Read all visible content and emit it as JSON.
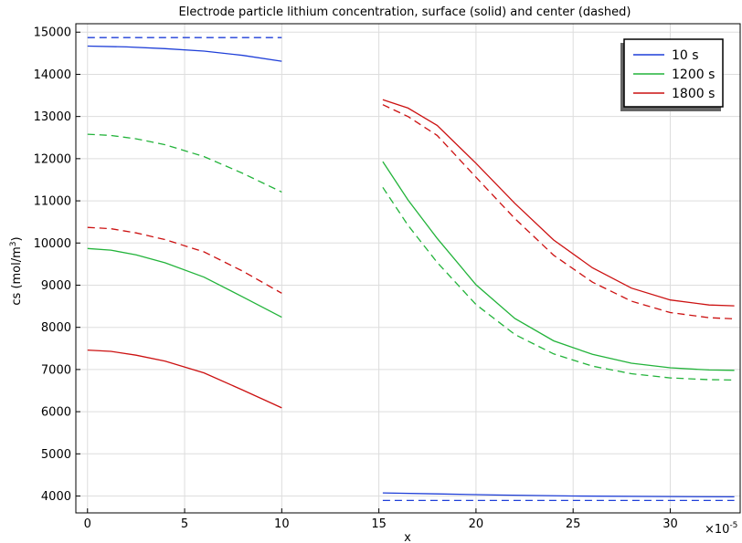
{
  "chart_data": {
    "type": "line",
    "title": "Electrode particle lithium concentration, surface (solid) and center (dashed)",
    "xlabel": "x",
    "ylabel": "cs (mol/m",
    "ylabel_sup": "3",
    "ylabel_close": ")",
    "x_multiplier": "×10",
    "x_multiplier_exp": "-5",
    "xlim": [
      -0.6,
      33.6
    ],
    "ylim": [
      3600,
      15200
    ],
    "xticks": [
      0,
      5,
      10,
      15,
      20,
      25,
      30
    ],
    "xtick_labels": [
      "0",
      "5",
      "10",
      "15",
      "20",
      "25",
      "30"
    ],
    "yticks": [
      4000,
      5000,
      6000,
      7000,
      8000,
      9000,
      10000,
      11000,
      12000,
      13000,
      14000,
      15000
    ],
    "ytick_labels": [
      "4000",
      "5000",
      "6000",
      "7000",
      "8000",
      "9000",
      "10000",
      "11000",
      "12000",
      "13000",
      "14000",
      "15000"
    ],
    "grid": true,
    "legend_position": "top-right",
    "legend": [
      {
        "label": "10 s",
        "color": "#1f3fd8"
      },
      {
        "label": "1200 s",
        "color": "#22b33a"
      },
      {
        "label": "1800 s",
        "color": "#cc1111"
      }
    ],
    "series": [
      {
        "name": "10 s",
        "style": "solid",
        "color": "#1f3fd8",
        "x": [
          0,
          2,
          4,
          6,
          8,
          10
        ],
        "y": [
          14670,
          14650,
          14610,
          14550,
          14450,
          14310
        ]
      },
      {
        "name": "10 s",
        "style": "dashed",
        "color": "#1f3fd8",
        "x": [
          0,
          10
        ],
        "y": [
          14870,
          14870
        ]
      },
      {
        "name": "1200 s",
        "style": "solid",
        "color": "#22b33a",
        "x": [
          0,
          1.2,
          2.5,
          4,
          6,
          8,
          10
        ],
        "y": [
          9870,
          9830,
          9720,
          9530,
          9190,
          8720,
          8240
        ]
      },
      {
        "name": "1200 s",
        "style": "dashed",
        "color": "#22b33a",
        "x": [
          0,
          1.2,
          2.5,
          4,
          6,
          8,
          10
        ],
        "y": [
          12580,
          12550,
          12470,
          12330,
          12050,
          11650,
          11210
        ]
      },
      {
        "name": "1800 s",
        "style": "solid",
        "color": "#cc1111",
        "x": [
          0,
          1.2,
          2.5,
          4,
          6,
          8,
          10
        ],
        "y": [
          7460,
          7430,
          7340,
          7200,
          6920,
          6510,
          6090
        ]
      },
      {
        "name": "1800 s",
        "style": "dashed",
        "color": "#cc1111",
        "x": [
          0,
          1.2,
          2.5,
          4,
          6,
          8,
          10
        ],
        "y": [
          10370,
          10340,
          10240,
          10080,
          9790,
          9330,
          8810
        ]
      },
      {
        "name": "10 s",
        "style": "solid",
        "color": "#1f3fd8",
        "x": [
          15.2,
          18,
          21,
          25,
          29,
          33.3
        ],
        "y": [
          4075,
          4050,
          4025,
          4000,
          3990,
          3980
        ]
      },
      {
        "name": "10 s",
        "style": "dashed",
        "color": "#1f3fd8",
        "x": [
          15.2,
          33.3
        ],
        "y": [
          3895,
          3895
        ]
      },
      {
        "name": "1200 s",
        "style": "solid",
        "color": "#22b33a",
        "x": [
          15.2,
          16.5,
          18,
          20,
          22,
          24,
          26,
          28,
          30,
          32,
          33.3
        ],
        "y": [
          11930,
          11020,
          10110,
          9010,
          8210,
          7680,
          7360,
          7150,
          7040,
          6990,
          6980
        ]
      },
      {
        "name": "1200 s",
        "style": "dashed",
        "color": "#22b33a",
        "x": [
          15.2,
          16.5,
          18,
          20,
          22,
          24,
          26,
          28,
          30,
          32,
          33.3
        ],
        "y": [
          11320,
          10420,
          9540,
          8540,
          7830,
          7370,
          7080,
          6900,
          6800,
          6760,
          6750
        ]
      },
      {
        "name": "1800 s",
        "style": "solid",
        "color": "#cc1111",
        "x": [
          15.2,
          16.5,
          18,
          20,
          22,
          24,
          26,
          28,
          30,
          32,
          33.3
        ],
        "y": [
          13400,
          13200,
          12790,
          11890,
          10940,
          10070,
          9410,
          8930,
          8650,
          8530,
          8510
        ]
      },
      {
        "name": "1800 s",
        "style": "dashed",
        "color": "#cc1111",
        "x": [
          15.2,
          16.5,
          18,
          20,
          22,
          24,
          26,
          28,
          30,
          32,
          33.3
        ],
        "y": [
          13280,
          13000,
          12550,
          11560,
          10580,
          9710,
          9070,
          8620,
          8350,
          8230,
          8200
        ]
      }
    ]
  }
}
